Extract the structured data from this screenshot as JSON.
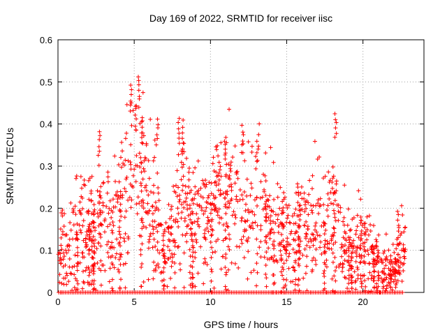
{
  "chart_data": {
    "type": "scatter",
    "title": "Day 169 of 2022, SRMTID for receiver iisc",
    "xlabel": "GPS time / hours",
    "ylabel": "SRMTID / TECUs",
    "xlim": [
      0,
      24
    ],
    "ylim": [
      0,
      0.6
    ],
    "xticks": [
      "0",
      "5",
      "10",
      "15",
      "20"
    ],
    "yticks": [
      "0",
      "0.1",
      "0.2",
      "0.3",
      "0.4",
      "0.5",
      "0.6"
    ],
    "grid": true,
    "legend": "none",
    "marker": "+",
    "color": "#ff0000",
    "profile": [
      {
        "x": 0.0,
        "y": 0.1
      },
      {
        "x": 0.5,
        "y": 0.11
      },
      {
        "x": 1.0,
        "y": 0.13
      },
      {
        "x": 1.5,
        "y": 0.15
      },
      {
        "x": 2.0,
        "y": 0.14
      },
      {
        "x": 2.5,
        "y": 0.16
      },
      {
        "x": 3.0,
        "y": 0.17
      },
      {
        "x": 3.5,
        "y": 0.16
      },
      {
        "x": 4.0,
        "y": 0.2
      },
      {
        "x": 4.5,
        "y": 0.25
      },
      {
        "x": 5.0,
        "y": 0.27
      },
      {
        "x": 5.5,
        "y": 0.26
      },
      {
        "x": 6.0,
        "y": 0.22
      },
      {
        "x": 6.5,
        "y": 0.16
      },
      {
        "x": 7.0,
        "y": 0.1
      },
      {
        "x": 7.5,
        "y": 0.14
      },
      {
        "x": 8.0,
        "y": 0.2
      },
      {
        "x": 8.5,
        "y": 0.19
      },
      {
        "x": 9.0,
        "y": 0.17
      },
      {
        "x": 9.5,
        "y": 0.18
      },
      {
        "x": 10.0,
        "y": 0.19
      },
      {
        "x": 10.5,
        "y": 0.21
      },
      {
        "x": 11.0,
        "y": 0.22
      },
      {
        "x": 11.5,
        "y": 0.21
      },
      {
        "x": 12.0,
        "y": 0.19
      },
      {
        "x": 12.5,
        "y": 0.17
      },
      {
        "x": 13.0,
        "y": 0.2
      },
      {
        "x": 13.5,
        "y": 0.19
      },
      {
        "x": 14.0,
        "y": 0.17
      },
      {
        "x": 14.5,
        "y": 0.14
      },
      {
        "x": 15.0,
        "y": 0.13
      },
      {
        "x": 15.5,
        "y": 0.12
      },
      {
        "x": 16.0,
        "y": 0.15
      },
      {
        "x": 16.5,
        "y": 0.17
      },
      {
        "x": 17.0,
        "y": 0.17
      },
      {
        "x": 17.5,
        "y": 0.15
      },
      {
        "x": 18.0,
        "y": 0.2
      },
      {
        "x": 18.5,
        "y": 0.14
      },
      {
        "x": 19.0,
        "y": 0.09
      },
      {
        "x": 19.5,
        "y": 0.1
      },
      {
        "x": 20.0,
        "y": 0.13
      },
      {
        "x": 20.5,
        "y": 0.09
      },
      {
        "x": 21.0,
        "y": 0.06
      },
      {
        "x": 21.5,
        "y": 0.06
      },
      {
        "x": 22.0,
        "y": 0.05
      },
      {
        "x": 22.5,
        "y": 0.09
      },
      {
        "x": 22.8,
        "y": 0.1
      }
    ],
    "spikes": [
      {
        "x": 5.1,
        "y": 0.45
      },
      {
        "x": 5.3,
        "y": 0.52
      },
      {
        "x": 4.8,
        "y": 0.5
      },
      {
        "x": 5.5,
        "y": 0.42
      },
      {
        "x": 6.5,
        "y": 0.42
      },
      {
        "x": 8.2,
        "y": 0.41
      },
      {
        "x": 7.9,
        "y": 0.42
      },
      {
        "x": 12.1,
        "y": 0.4
      },
      {
        "x": 13.1,
        "y": 0.38
      },
      {
        "x": 18.2,
        "y": 0.43
      },
      {
        "x": 2.7,
        "y": 0.39
      },
      {
        "x": 11.0,
        "y": 0.37
      },
      {
        "x": 10.6,
        "y": 0.31
      },
      {
        "x": 22.3,
        "y": 0.2
      }
    ],
    "zero_row": {
      "y": 0,
      "x_from": 0.05,
      "x_to": 22.6
    }
  }
}
